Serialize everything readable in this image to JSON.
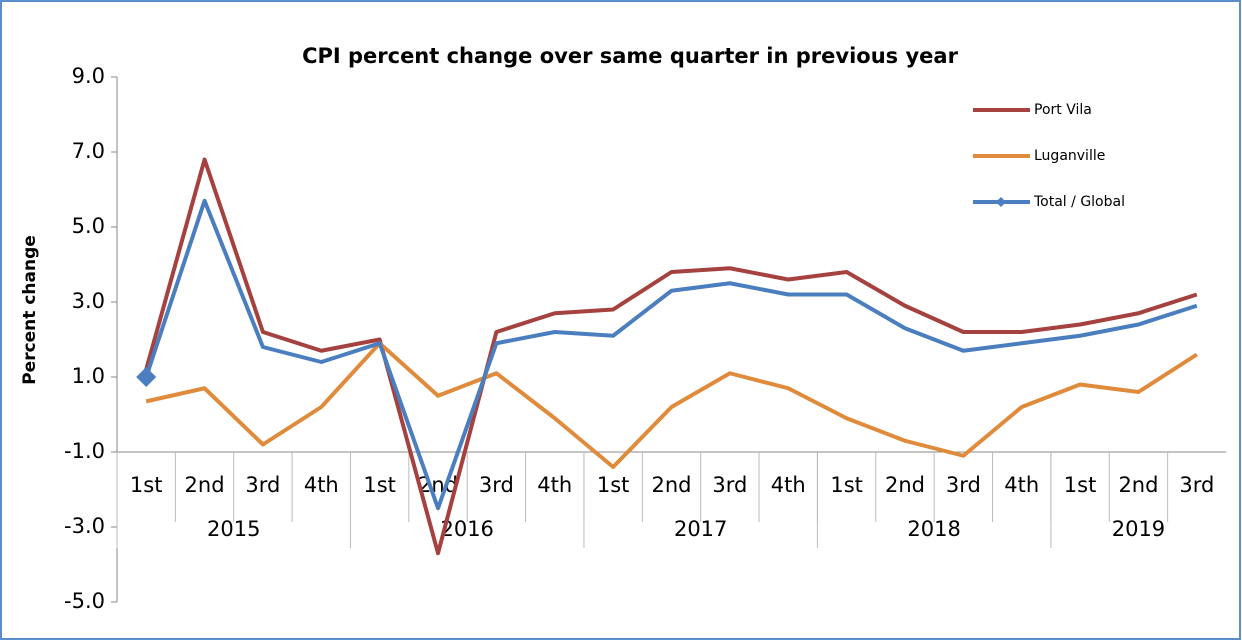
{
  "chart_data": {
    "type": "line",
    "title": "CPI percent change over same quarter in previous year",
    "y_label": "Percent change",
    "categories": [
      "1st",
      "2nd",
      "3rd",
      "4th",
      "1st",
      "2nd",
      "3rd",
      "4th",
      "1st",
      "2nd",
      "3rd",
      "4th",
      "1st",
      "2nd",
      "3rd",
      "4th",
      "1st",
      "2nd",
      "3rd"
    ],
    "years": [
      "2015",
      null,
      null,
      null,
      "2016",
      null,
      null,
      null,
      "2017",
      null,
      null,
      null,
      "2018",
      null,
      null,
      null,
      "2019",
      null,
      null
    ],
    "series": [
      {
        "name": "Port Vila",
        "color": "#a5413e",
        "values": [
          1.2,
          6.8,
          2.2,
          1.7,
          2.0,
          -3.7,
          2.2,
          2.7,
          2.8,
          3.8,
          3.9,
          3.6,
          3.8,
          2.9,
          2.2,
          2.2,
          2.4,
          2.7,
          3.2
        ]
      },
      {
        "name": "Luganville",
        "color": "#e08b3b",
        "values": [
          0.35,
          0.7,
          -0.8,
          0.2,
          1.9,
          0.5,
          1.1,
          -0.1,
          -1.4,
          0.2,
          1.1,
          0.7,
          -0.1,
          -0.7,
          -1.1,
          0.2,
          0.8,
          0.6,
          1.6
        ]
      },
      {
        "name": "Total / Global",
        "color": "#4a7ebf",
        "marker": "diamond",
        "values": [
          1.0,
          5.7,
          1.8,
          1.4,
          1.9,
          -2.5,
          1.9,
          2.2,
          2.1,
          3.3,
          3.5,
          3.2,
          3.2,
          2.3,
          1.7,
          1.9,
          2.1,
          2.4,
          2.9
        ]
      }
    ],
    "ylim": [
      -5,
      9
    ],
    "yticks": [
      {
        "value": -5,
        "label": "-5.0"
      },
      {
        "value": -3,
        "label": "-3.0"
      },
      {
        "value": -1,
        "label": "-1.0"
      },
      {
        "value": 1,
        "label": "1.0"
      },
      {
        "value": 3,
        "label": "3.0"
      },
      {
        "value": 5,
        "label": "5.0"
      },
      {
        "value": 7,
        "label": "7.0"
      },
      {
        "value": 9,
        "label": "9.0"
      }
    ],
    "category_axis_at": -1,
    "legend": "top-right"
  }
}
